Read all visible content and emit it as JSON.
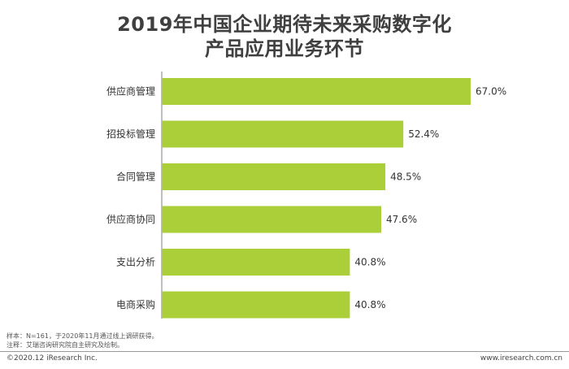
{
  "title": {
    "line1": "2019年中国企业期待未来采购数字化",
    "line2": "产品应用业务环节"
  },
  "chart_data": {
    "type": "bar",
    "orientation": "horizontal",
    "categories": [
      "供应商管理",
      "招投标管理",
      "合同管理",
      "供应商协同",
      "支出分析",
      "电商采购"
    ],
    "values": [
      67.0,
      52.4,
      48.5,
      47.6,
      40.8,
      40.8
    ],
    "value_labels": [
      "67.0%",
      "52.4%",
      "48.5%",
      "47.6%",
      "40.8%",
      "40.8%"
    ],
    "bar_color": "#aacf38",
    "xlim": [
      0,
      67.0
    ]
  },
  "notes": {
    "sample": "样本：N=161，于2020年11月通过线上调研获得。",
    "remark": "注释：艾瑞咨询研究院自主研究及绘制。"
  },
  "footer": {
    "copyright": "©2020.12 iResearch Inc.",
    "website": "www.iresearch.com.cn"
  }
}
